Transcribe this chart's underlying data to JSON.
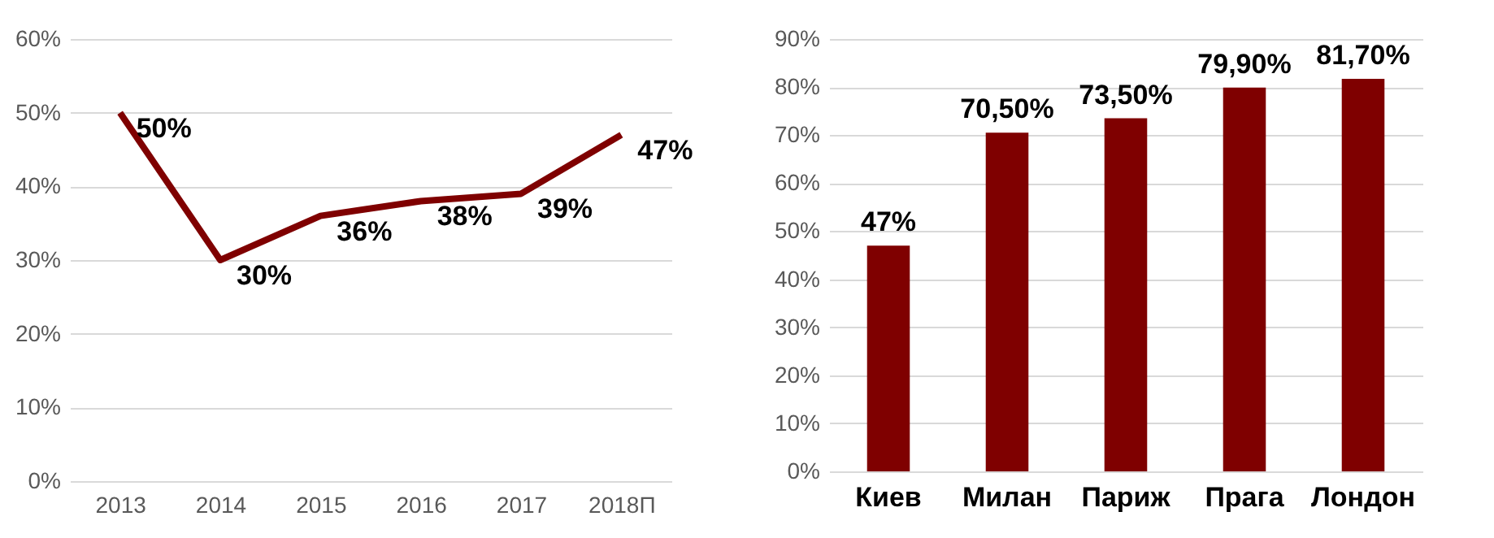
{
  "chart_data": [
    {
      "type": "line",
      "categories": [
        "2013",
        "2014",
        "2015",
        "2016",
        "2017",
        "2018П"
      ],
      "series": [
        {
          "color": "#7f0000",
          "values": [
            50,
            30,
            36,
            38,
            39,
            47
          ],
          "value_labels": [
            "50%",
            "30%",
            "36%",
            "38%",
            "39%",
            "47%"
          ]
        }
      ],
      "ylim": [
        0,
        60
      ],
      "yticks": [
        {
          "value": 0,
          "label": "0%"
        },
        {
          "value": 10,
          "label": "10%"
        },
        {
          "value": 20,
          "label": "20%"
        },
        {
          "value": 30,
          "label": "30%"
        },
        {
          "value": 40,
          "label": "40%"
        },
        {
          "value": 50,
          "label": "50%"
        },
        {
          "value": 60,
          "label": "60%"
        }
      ],
      "grid": "y",
      "line_style": "solid",
      "marker": "none"
    },
    {
      "type": "bar",
      "categories": [
        "Киев",
        "Милан",
        "Париж",
        "Прага",
        "Лондон"
      ],
      "series": [
        {
          "color": "#7f0000",
          "values": [
            47,
            70.5,
            73.5,
            79.9,
            81.7
          ],
          "value_labels": [
            "47%",
            "70,50%",
            "73,50%",
            "79,90%",
            "81,70%"
          ]
        }
      ],
      "ylim": [
        0,
        90
      ],
      "yticks": [
        {
          "value": 0,
          "label": "0%"
        },
        {
          "value": 10,
          "label": "10%"
        },
        {
          "value": 20,
          "label": "20%"
        },
        {
          "value": 30,
          "label": "30%"
        },
        {
          "value": 40,
          "label": "40%"
        },
        {
          "value": 50,
          "label": "50%"
        },
        {
          "value": 60,
          "label": "60%"
        },
        {
          "value": 70,
          "label": "70%"
        },
        {
          "value": 80,
          "label": "80%"
        },
        {
          "value": 90,
          "label": "90%"
        }
      ],
      "grid": "y"
    }
  ]
}
